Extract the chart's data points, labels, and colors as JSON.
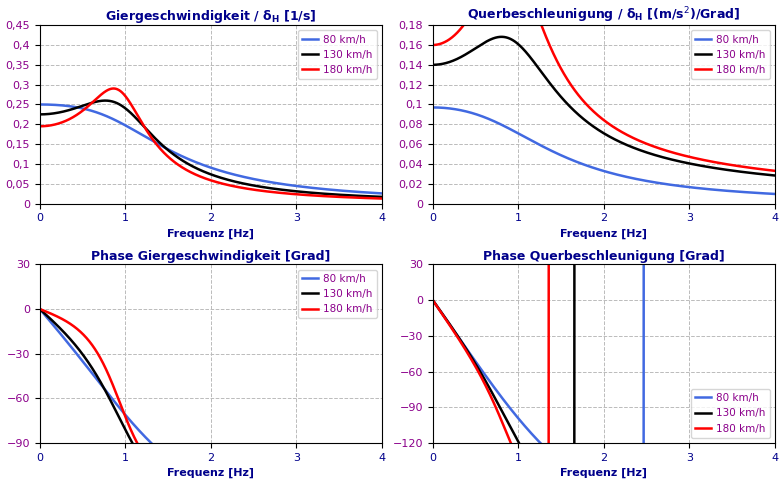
{
  "title_tl": "Giergeschwindigkeit / δ_H [1/s]",
  "title_tr": "Querbeschleunigung / δ_H [(m/s²)/Grad]",
  "title_bl": "Phase Giergeschwindigkeit [Grad]",
  "title_br": "Phase Querbeschleunigung [Grad]",
  "xlabel": "Frequenz [Hz]",
  "legend_labels": [
    "80 km/h",
    "130 km/h",
    "180 km/h"
  ],
  "colors": [
    "#4169E1",
    "#000000",
    "#FF0000"
  ],
  "line_width": 1.8,
  "freq_max": 4.0,
  "tl_ylim": [
    0,
    0.45
  ],
  "tl_yticks": [
    0,
    0.05,
    0.1,
    0.15,
    0.2,
    0.25,
    0.3,
    0.35,
    0.4,
    0.45
  ],
  "tr_ylim": [
    0,
    0.18
  ],
  "tr_yticks": [
    0,
    0.02,
    0.04,
    0.06,
    0.08,
    0.1,
    0.12,
    0.14,
    0.16,
    0.18
  ],
  "bl_ylim": [
    -90,
    30
  ],
  "bl_yticks": [
    -90,
    -60,
    -30,
    0,
    30
  ],
  "br_ylim": [
    -120,
    30
  ],
  "br_yticks": [
    -120,
    -90,
    -60,
    -30,
    0,
    30
  ],
  "background_color": "#FFFFFF",
  "grid_color": "#BBBBBB",
  "grid_style": "--",
  "tick_color_y": "#8B008B",
  "tick_color_x": "#00008B",
  "title_color": "#00008B",
  "legend_text_color": "#8B008B"
}
